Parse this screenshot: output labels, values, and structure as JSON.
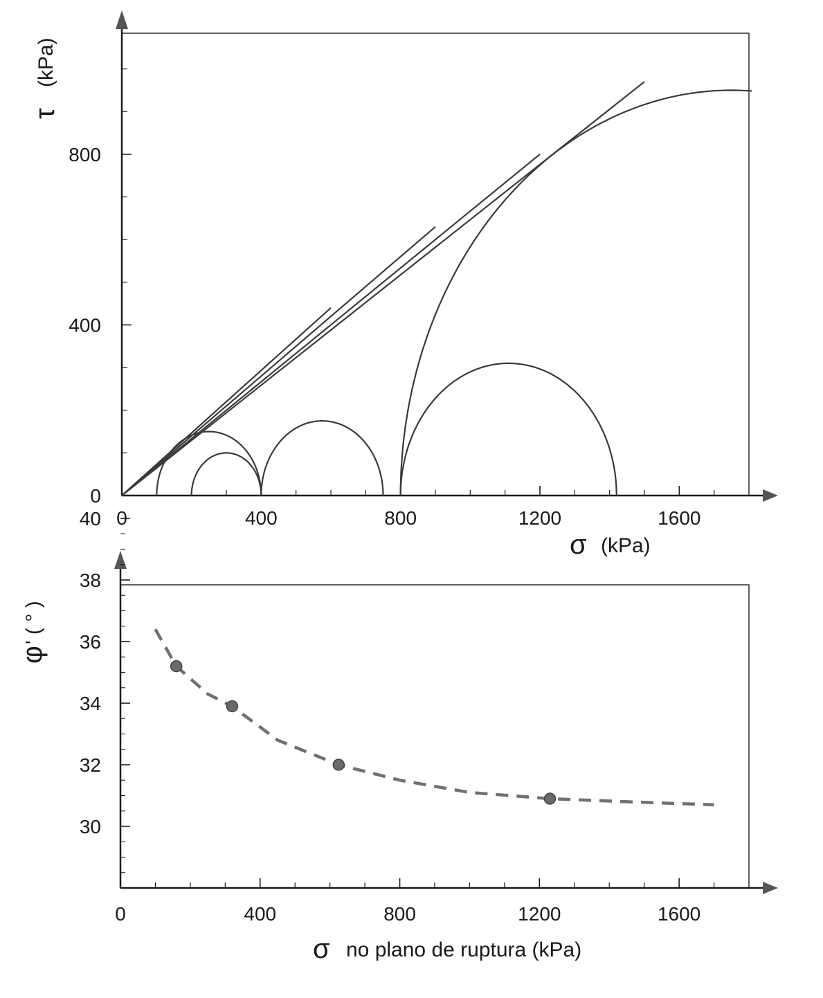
{
  "colors": {
    "ink": "#1a1a1a",
    "curve": "#3a3a3a",
    "marker": "#6a6a6a",
    "dash": "#707070"
  },
  "chart_data": [
    {
      "type": "line",
      "title": "",
      "xlabel_symbol": "σ",
      "xlabel": "(kPa)",
      "ylabel_symbol": "τ",
      "ylabel": "(kPa)",
      "xlim": [
        0,
        1800
      ],
      "ylim": [
        0,
        1080
      ],
      "x_ticks": [
        0,
        400,
        800,
        1200,
        1600
      ],
      "y_ticks": [
        0,
        400,
        800
      ],
      "grid": false,
      "mohr_circles": [
        {
          "sigma3": 100,
          "sigma1": 400
        },
        {
          "sigma3": 200,
          "sigma1": 400
        },
        {
          "sigma3": 400,
          "sigma1": 750
        },
        {
          "sigma3": 800,
          "sigma1": 1420
        },
        {
          "sigma3": 800,
          "sigma1": 2700
        }
      ],
      "envelopes": [
        {
          "x": [
            0,
            600
          ],
          "y": [
            0,
            440
          ]
        },
        {
          "x": [
            0,
            900
          ],
          "y": [
            0,
            630
          ]
        },
        {
          "x": [
            0,
            1200
          ],
          "y": [
            0,
            800
          ]
        },
        {
          "x": [
            0,
            1500
          ],
          "y": [
            0,
            970
          ]
        }
      ]
    },
    {
      "type": "scatter",
      "title": "",
      "xlabel_symbol": "σ",
      "xlabel": "no plano de ruptura (kPa)",
      "ylabel_symbol": "φ",
      "ylabel": "' ( ° )",
      "xlim": [
        0,
        1800
      ],
      "ylim": [
        28,
        40
      ],
      "x_ticks": [
        0,
        400,
        800,
        1200,
        1600
      ],
      "y_ticks": [
        30,
        32,
        34,
        36,
        38,
        40
      ],
      "grid": false,
      "points": {
        "x": [
          160,
          320,
          625,
          1230
        ],
        "y": [
          35.2,
          33.9,
          32.0,
          30.9
        ]
      },
      "trend": {
        "style": "dashed",
        "x": [
          100,
          160,
          250,
          320,
          450,
          625,
          800,
          1000,
          1230,
          1450,
          1700
        ],
        "y": [
          36.4,
          35.2,
          34.3,
          33.9,
          32.8,
          32.0,
          31.5,
          31.1,
          30.9,
          30.8,
          30.7
        ]
      }
    }
  ]
}
